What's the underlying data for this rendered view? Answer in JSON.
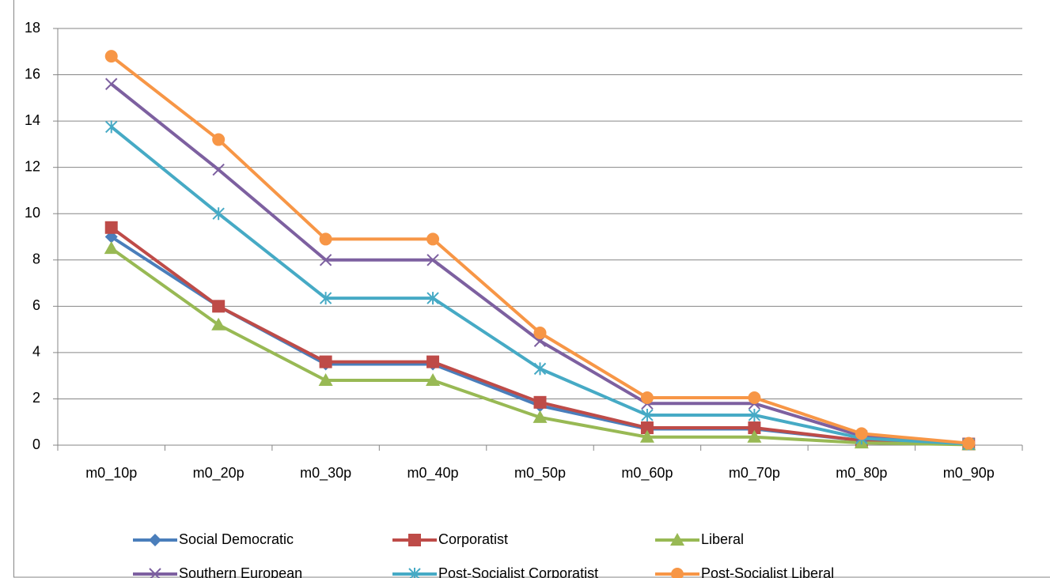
{
  "chart_data": {
    "type": "line",
    "categories": [
      "m0_10p",
      "m0_20p",
      "m0_30p",
      "m0_40p",
      "m0_50p",
      "m0_60p",
      "m0_70p",
      "m0_80p",
      "m0_90p"
    ],
    "series": [
      {
        "name": "Social Democratic",
        "color": "#4a7ebb",
        "marker": "diamond",
        "values": [
          9.0,
          6.0,
          3.5,
          3.5,
          1.7,
          0.7,
          0.7,
          0.2,
          0.05
        ]
      },
      {
        "name": "Corporatist",
        "color": "#be4b48",
        "marker": "square",
        "values": [
          9.4,
          6.0,
          3.6,
          3.6,
          1.85,
          0.75,
          0.75,
          0.2,
          0.05
        ]
      },
      {
        "name": "Liberal",
        "color": "#98b954",
        "marker": "triangle",
        "values": [
          8.5,
          5.2,
          2.8,
          2.8,
          1.2,
          0.35,
          0.35,
          0.1,
          0.02
        ]
      },
      {
        "name": "Southern European",
        "color": "#7d60a0",
        "marker": "x",
        "values": [
          15.6,
          11.9,
          8.0,
          8.0,
          4.5,
          1.8,
          1.8,
          0.4,
          0.05
        ]
      },
      {
        "name": "Post-Socialist Corporatist",
        "color": "#46aac5",
        "marker": "star",
        "values": [
          13.75,
          10.0,
          6.35,
          6.35,
          3.3,
          1.3,
          1.3,
          0.3,
          0.05
        ]
      },
      {
        "name": "Post-Socialist Liberal",
        "color": "#f79646",
        "marker": "circle",
        "values": [
          16.8,
          13.2,
          8.9,
          8.9,
          4.85,
          2.05,
          2.05,
          0.5,
          0.08
        ]
      }
    ],
    "ylim": [
      0,
      18
    ],
    "yticks": [
      0,
      2,
      4,
      6,
      8,
      10,
      12,
      14,
      16,
      18
    ],
    "grid": true,
    "legend": "bottom"
  }
}
